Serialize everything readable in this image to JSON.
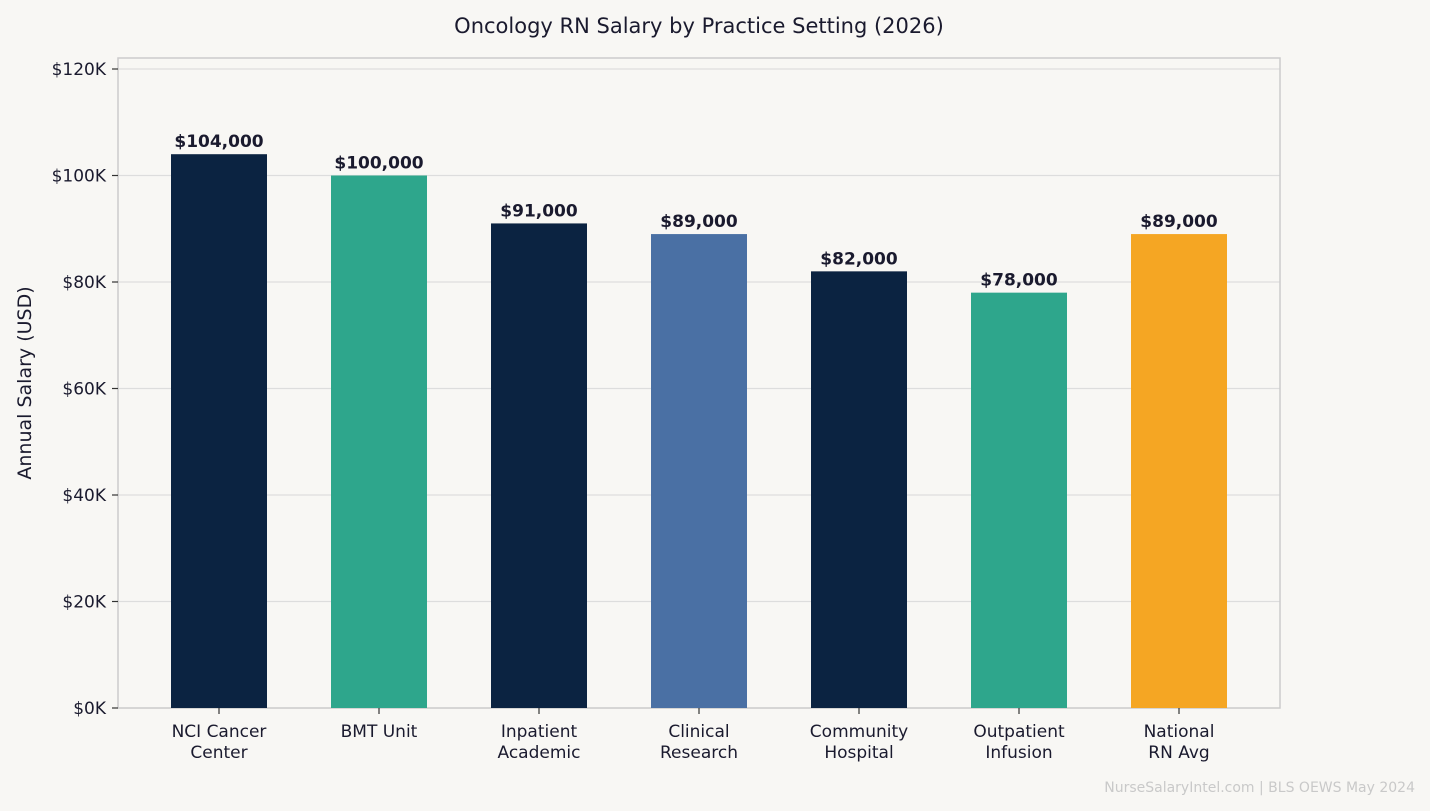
{
  "chart_data": {
    "type": "bar",
    "title": "Oncology RN Salary by Practice Setting (2026)",
    "xlabel": "",
    "ylabel": "Annual Salary (USD)",
    "ylim": [
      0,
      120000
    ],
    "yticks": [
      0,
      20000,
      40000,
      60000,
      80000,
      100000,
      120000
    ],
    "ytick_labels": [
      "$0K",
      "$20K",
      "$40K",
      "$60K",
      "$80K",
      "$100K",
      "$120K"
    ],
    "grid": true,
    "categories": [
      [
        "NCI Cancer",
        "Center"
      ],
      [
        "BMT Unit"
      ],
      [
        "Inpatient",
        "Academic"
      ],
      [
        "Clinical",
        "Research"
      ],
      [
        "Community",
        "Hospital"
      ],
      [
        "Outpatient",
        "Infusion"
      ],
      [
        "National",
        "RN Avg"
      ]
    ],
    "values": [
      104000,
      100000,
      91000,
      89000,
      82000,
      78000,
      89000
    ],
    "value_labels": [
      "$104,000",
      "$100,000",
      "$91,000",
      "$89,000",
      "$82,000",
      "$78,000",
      "$89,000"
    ],
    "colors": [
      "#0b2341",
      "#2ea68c",
      "#0b2341",
      "#4a70a4",
      "#0b2341",
      "#2ea68c",
      "#f5a623"
    ]
  },
  "source_note": "NurseSalaryIntel.com | BLS OEWS May 2024"
}
